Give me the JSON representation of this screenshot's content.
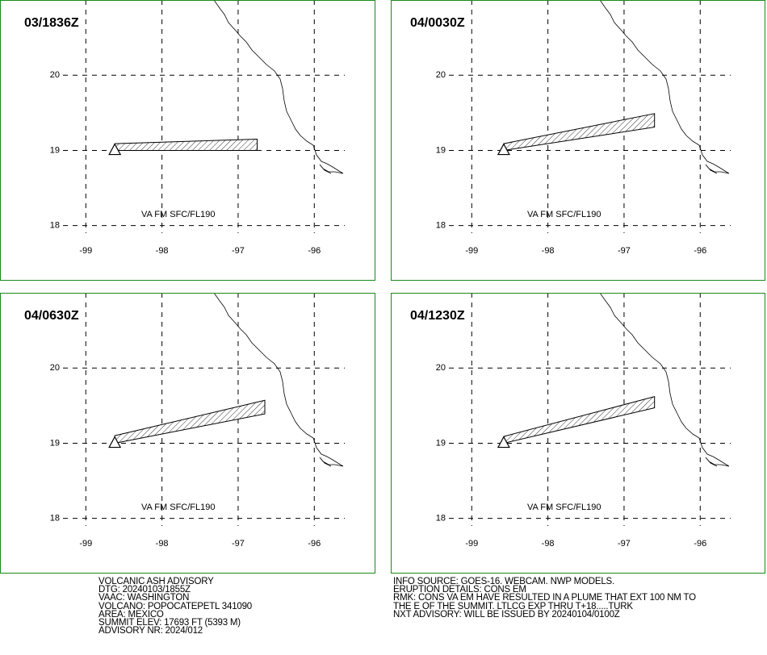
{
  "map": {
    "xlim": [
      -99.3,
      -95.6
    ],
    "ylim": [
      17.9,
      21
    ],
    "xticks": [
      -99,
      -98,
      -97,
      -96
    ],
    "yticks": [
      18,
      19,
      20
    ]
  },
  "panels": [
    {
      "time": "03/1836Z",
      "label": "VA FM SFC/FL190",
      "volcano": {
        "lon": -98.62,
        "lat": 19.02
      },
      "plume": {
        "lon": [
          -98.62,
          -96.75,
          -96.75,
          -98.62
        ],
        "lat": [
          19.09,
          19.15,
          19.0,
          19.0
        ]
      }
    },
    {
      "time": "04/0030Z",
      "label": "VA FM SFC/FL190",
      "volcano": {
        "lon": -98.58,
        "lat": 19.02
      },
      "plume": {
        "lon": [
          -98.58,
          -96.6,
          -96.6,
          -98.58
        ],
        "lat": [
          19.09,
          19.49,
          19.31,
          19.0
        ]
      }
    },
    {
      "time": "04/0630Z",
      "label": "VA FM SFC/FL190",
      "volcano": {
        "lon": -98.62,
        "lat": 19.02
      },
      "plume": {
        "lon": [
          -98.62,
          -96.65,
          -96.65,
          -98.62
        ],
        "lat": [
          19.1,
          19.57,
          19.39,
          19.0
        ]
      }
    },
    {
      "time": "04/1230Z",
      "label": "VA FM SFC/FL190",
      "volcano": {
        "lon": -98.58,
        "lat": 19.02
      },
      "plume": {
        "lon": [
          -98.58,
          -96.6,
          -96.6,
          -98.58
        ],
        "lat": [
          19.09,
          19.62,
          19.47,
          19.0
        ]
      }
    }
  ],
  "advisory_left": [
    "VOLCANIC ASH ADVISORY",
    "DTG: 20240103/1855Z",
    "VAAC: WASHINGTON",
    "VOLCANO: POPOCATEPETL 341090",
    "AREA: MEXICO",
    "SUMMIT ELEV: 17693 FT (5393 M)",
    "ADVISORY NR: 2024/012"
  ],
  "advisory_right": [
    "INFO SOURCE: GOES-16. WEBCAM. NWP MODELS.",
    "ERUPTION DETAILS: CONS EM",
    "RMK: CONS VA EM HAVE RESULTED IN A PLUME THAT EXT 100 NM TO",
    "THE E OF THE SUMMIT. LTLCG EXP THRU T+18.....TURK",
    "NXT ADVISORY: WILL BE ISSUED BY 20240104/0100Z"
  ]
}
